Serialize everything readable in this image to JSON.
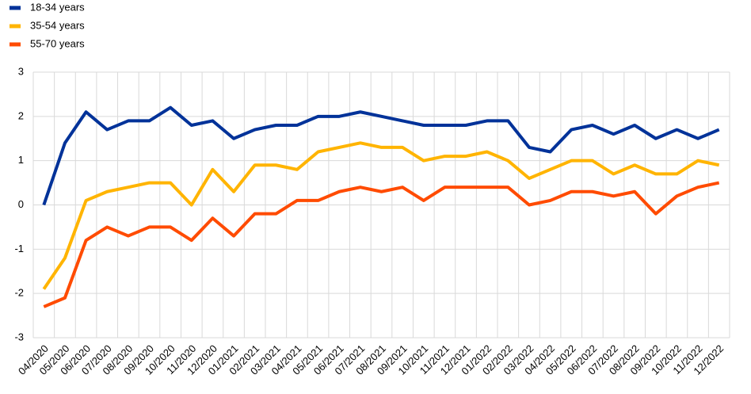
{
  "chart_data": {
    "type": "line",
    "categories": [
      "04/2020",
      "05/2020",
      "06/2020",
      "07/2020",
      "08/2020",
      "09/2020",
      "10/2020",
      "11/2020",
      "12/2020",
      "01/2021",
      "02/2021",
      "03/2021",
      "04/2021",
      "05/2021",
      "06/2021",
      "07/2021",
      "08/2021",
      "09/2021",
      "10/2021",
      "11/2021",
      "12/2021",
      "01/2022",
      "02/2022",
      "03/2022",
      "04/2022",
      "05/2022",
      "06/2022",
      "07/2022",
      "08/2022",
      "09/2022",
      "10/2022",
      "11/2022",
      "12/2022"
    ],
    "series": [
      {
        "name": "18-34 years",
        "color": "#003299",
        "values": [
          0.0,
          1.4,
          2.1,
          1.7,
          1.9,
          1.9,
          2.2,
          1.8,
          1.9,
          1.5,
          1.7,
          1.8,
          1.8,
          2.0,
          2.0,
          2.1,
          2.0,
          1.9,
          1.8,
          1.8,
          1.8,
          1.9,
          1.9,
          1.3,
          1.2,
          1.7,
          1.8,
          1.6,
          1.8,
          1.5,
          1.7,
          1.5,
          1.7
        ]
      },
      {
        "name": "35-54 years",
        "color": "#ffb400",
        "values": [
          -1.9,
          -1.2,
          0.1,
          0.3,
          0.4,
          0.5,
          0.5,
          0.0,
          0.8,
          0.3,
          0.9,
          0.9,
          0.8,
          1.2,
          1.3,
          1.4,
          1.3,
          1.3,
          1.0,
          1.1,
          1.1,
          1.2,
          1.0,
          0.6,
          0.8,
          1.0,
          1.0,
          0.7,
          0.9,
          0.7,
          0.7,
          1.0,
          0.9
        ]
      },
      {
        "name": "55-70 years",
        "color": "#ff4b00",
        "values": [
          -2.3,
          -2.1,
          -0.8,
          -0.5,
          -0.7,
          -0.5,
          -0.5,
          -0.8,
          -0.3,
          -0.7,
          -0.2,
          -0.2,
          0.1,
          0.1,
          0.3,
          0.4,
          0.3,
          0.4,
          0.1,
          0.4,
          0.4,
          0.4,
          0.4,
          0.0,
          0.1,
          0.3,
          0.3,
          0.2,
          0.3,
          -0.2,
          0.2,
          0.4,
          0.5
        ]
      }
    ],
    "ylim": [
      -3,
      3
    ],
    "yticks": [
      -3,
      -2,
      -1,
      0,
      1,
      2,
      3
    ],
    "grid": true,
    "legend": "top-left"
  }
}
